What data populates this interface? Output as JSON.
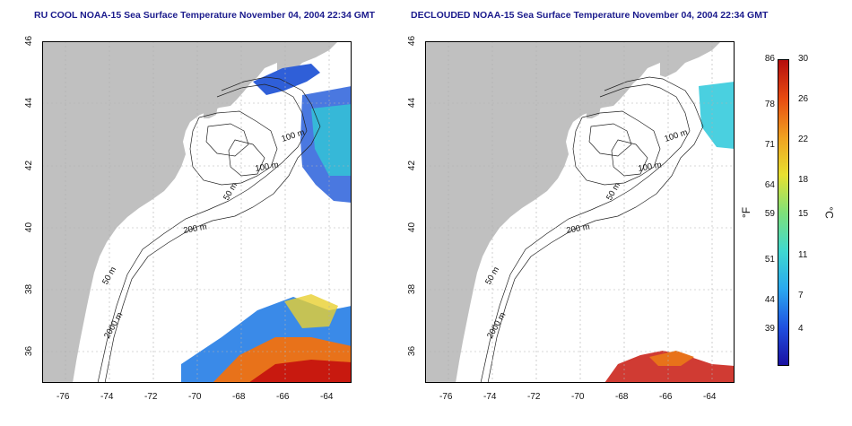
{
  "panels": [
    {
      "title": "RU COOL NOAA-15 Sea Surface Temperature November 04, 2004 22:34 GMT"
    },
    {
      "title": "DECLOUDED NOAA-15 Sea Surface Temperature November 04, 2004 22:34 GMT"
    }
  ],
  "axes": {
    "lat_ticks": [
      "46",
      "44",
      "42",
      "40",
      "38",
      "36"
    ],
    "lon_ticks": [
      "-76",
      "-74",
      "-72",
      "-70",
      "-68",
      "-66",
      "-64"
    ]
  },
  "contour_labels": [
    "100 m",
    "100 m",
    "50 m",
    "200 m",
    "50 m",
    "2000 m"
  ],
  "colorbar": {
    "fahrenheit_ticks": [
      "86",
      "78",
      "71",
      "64",
      "59",
      "51",
      "44",
      "39"
    ],
    "celsius_ticks": [
      "30",
      "26",
      "22",
      "18",
      "15",
      "11",
      "7",
      "4"
    ],
    "unit_f": "°F",
    "unit_c": "°C",
    "colors": [
      "#1a0fa0",
      "#1f4fe0",
      "#29a8f0",
      "#3fd8d0",
      "#7ee07a",
      "#e8e030",
      "#f0a020",
      "#e84a10",
      "#b40d0d"
    ]
  },
  "colors": {
    "land": "#c0c0c0",
    "ocean": "#ffffff",
    "title": "#1a1a8c",
    "grid": "#b0b0b0"
  }
}
